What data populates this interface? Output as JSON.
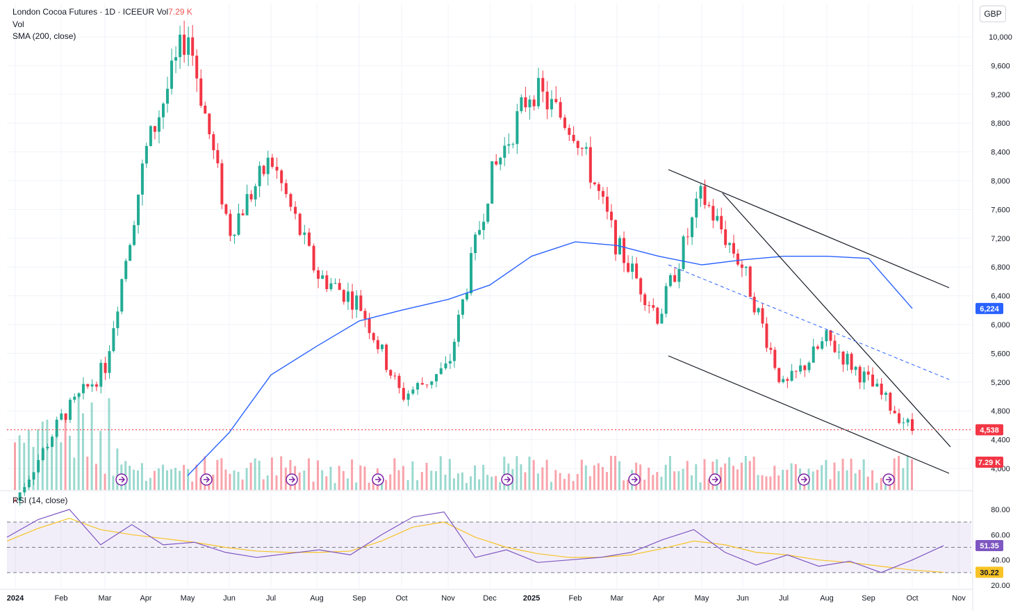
{
  "legend": {
    "symbol": "London Cocoa Futures · 1D · ICEEUR",
    "volume_label": "Vol",
    "volume_value": "7.29 K",
    "line2": "Vol",
    "line3": "SMA (200, close)"
  },
  "currency_button": "GBP",
  "rsi_label": "RSI (14, close)",
  "price_badges": {
    "last": "4,538",
    "sma": "6,224",
    "volume": "7.29 K"
  },
  "rsi_badges": {
    "rsi": "51.35",
    "rsi_ma": "30.22"
  },
  "colors": {
    "up": "#22ab94",
    "down": "#f23645",
    "sma": "#2962ff",
    "rsi": "#7e57c2",
    "rsi_ma": "#f7c325",
    "trendline": "#131722",
    "dashed": "#2962ff",
    "last_line": "#f23645"
  },
  "icons": [
    "event-arrow-icon"
  ],
  "chart_data": [
    {
      "type": "candlestick",
      "title": "London Cocoa Futures · 1D · ICEEUR",
      "y_ticks": [
        "10,000",
        "9,600",
        "9,200",
        "8,800",
        "8,400",
        "8,000",
        "7,600",
        "7,200",
        "6,800",
        "6,400",
        "6,000",
        "5,600",
        "5,200",
        "4,800",
        "4,400",
        "4,000"
      ],
      "ylim": [
        3800,
        10400
      ],
      "x_ticks": [
        "2024",
        "Feb",
        "Mar",
        "Apr",
        "May",
        "Jun",
        "Jul",
        "Aug",
        "Sep",
        "Oct",
        "Nov",
        "Dec",
        "2025",
        "Feb",
        "Mar",
        "Apr",
        "May",
        "Jun",
        "Jul",
        "Aug",
        "Sep",
        "Oct",
        "Nov"
      ],
      "last_price": 4538,
      "series": [
        {
          "name": "Price",
          "x": [
            "2024-01",
            "2024-02",
            "2024-03",
            "2024-04",
            "2024-05",
            "2024-06",
            "2024-07",
            "2024-08",
            "2024-09",
            "2024-10",
            "2024-11",
            "2024-12",
            "2025-01",
            "2025-02",
            "2025-03",
            "2025-04",
            "2025-05",
            "2025-06",
            "2025-07",
            "2025-08",
            "2025-09",
            "2025-10"
          ],
          "values": [
            3550,
            4700,
            5400,
            8400,
            10100,
            7300,
            8300,
            6700,
            6300,
            5000,
            5400,
            8000,
            9300,
            8700,
            7100,
            6100,
            7800,
            6800,
            5100,
            5800,
            5200,
            4538
          ]
        },
        {
          "name": "SMA (200, close)",
          "x": [
            "2024-05",
            "2024-06",
            "2024-07",
            "2024-08",
            "2024-09",
            "2024-10",
            "2024-11",
            "2024-12",
            "2025-01",
            "2025-02",
            "2025-03",
            "2025-04",
            "2025-05",
            "2025-06",
            "2025-07",
            "2025-08",
            "2025-09",
            "2025-10"
          ],
          "values": [
            3900,
            4500,
            5300,
            5700,
            6050,
            6200,
            6350,
            6550,
            6950,
            7150,
            7100,
            6950,
            6830,
            6900,
            6950,
            6950,
            6920,
            6224
          ]
        }
      ]
    },
    {
      "type": "line",
      "title": "RSI (14, close)",
      "y_ticks": [
        "80.00",
        "60.00",
        "40.00",
        "20.00"
      ],
      "ylim": [
        20,
        90
      ],
      "levels": [
        70,
        50,
        30
      ],
      "series": [
        {
          "name": "RSI",
          "values": [
            58,
            72,
            80,
            52,
            68,
            52,
            54,
            46,
            42,
            45,
            48,
            44,
            60,
            74,
            78,
            42,
            48,
            38,
            40,
            42,
            46,
            56,
            64,
            46,
            36,
            44,
            35,
            39,
            30,
            40,
            51.35
          ]
        },
        {
          "name": "RSI MA",
          "values": [
            55,
            65,
            73,
            64,
            60,
            57,
            54,
            50,
            47,
            46,
            46,
            47,
            55,
            66,
            70,
            58,
            50,
            45,
            42,
            42,
            44,
            49,
            55,
            52,
            46,
            44,
            40,
            38,
            35,
            32,
            30.22
          ]
        }
      ]
    }
  ]
}
